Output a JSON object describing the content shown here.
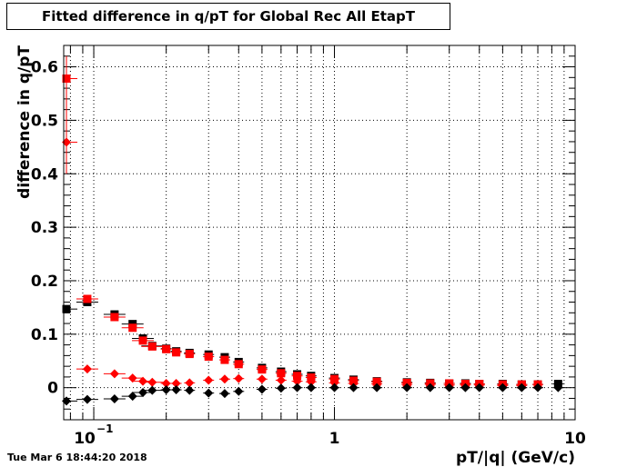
{
  "chart_data": {
    "type": "scatter",
    "title": "Fitted difference in q/pT for Global Rec All EtapT",
    "xlabel": "pT/|q| (GeV/c)",
    "ylabel": "difference in q/pT",
    "xscale": "log",
    "xlim": [
      0.075,
      10
    ],
    "ylim": [
      -0.06,
      0.64
    ],
    "grid": true,
    "x_ticks": [
      {
        "value": 0.1,
        "label": "10",
        "sup": "−1"
      },
      {
        "value": 1,
        "label": "1",
        "sup": ""
      },
      {
        "value": 10,
        "label": "10",
        "sup": ""
      }
    ],
    "y_ticks": [
      {
        "value": 0,
        "label": "0"
      },
      {
        "value": 0.1,
        "label": "0.1"
      },
      {
        "value": 0.2,
        "label": "0.2"
      },
      {
        "value": 0.3,
        "label": "0.3"
      },
      {
        "value": 0.4,
        "label": "0.4"
      },
      {
        "value": 0.5,
        "label": "0.5"
      },
      {
        "value": 0.6,
        "label": "0.6"
      }
    ],
    "series": [
      {
        "marker": "square",
        "color": "#000000",
        "x": [
          0.077,
          0.094,
          0.122,
          0.145,
          0.16,
          0.175,
          0.2,
          0.22,
          0.25,
          0.3,
          0.35,
          0.4,
          0.5,
          0.6,
          0.7,
          0.8,
          1.0,
          1.2,
          1.5,
          2.0,
          2.5,
          3.0,
          3.5,
          4.0,
          5.0,
          6.0,
          7.0,
          8.5
        ],
        "y": [
          0.147,
          0.16,
          0.137,
          0.119,
          0.092,
          0.078,
          0.073,
          0.068,
          0.065,
          0.062,
          0.057,
          0.048,
          0.037,
          0.03,
          0.025,
          0.022,
          0.018,
          0.015,
          0.012,
          0.01,
          0.009,
          0.008,
          0.008,
          0.007,
          0.007,
          0.006,
          0.006,
          0.007
        ]
      },
      {
        "marker": "square",
        "color": "#ff0000",
        "x": [
          0.077,
          0.094,
          0.122,
          0.145,
          0.16,
          0.175,
          0.2,
          0.22,
          0.25,
          0.3,
          0.35,
          0.4,
          0.5,
          0.6,
          0.7,
          0.8,
          1.0,
          1.2,
          1.5,
          2.0,
          2.5,
          3.0,
          3.5,
          4.0,
          5.0,
          6.0,
          7.0
        ],
        "y": [
          0.578,
          0.166,
          0.132,
          0.112,
          0.088,
          0.077,
          0.072,
          0.066,
          0.063,
          0.058,
          0.052,
          0.044,
          0.034,
          0.027,
          0.022,
          0.019,
          0.016,
          0.013,
          0.011,
          0.009,
          0.008,
          0.008,
          0.007,
          0.007,
          0.006,
          0.006,
          0.006
        ]
      },
      {
        "marker": "diamond",
        "color": "#ff0000",
        "x": [
          0.077,
          0.094,
          0.122,
          0.145,
          0.16,
          0.175,
          0.2,
          0.22,
          0.25,
          0.3,
          0.35,
          0.4,
          0.5,
          0.6,
          0.7,
          0.8,
          1.0,
          1.2,
          1.5,
          2.0,
          2.5,
          3.0,
          3.5,
          4.0,
          5.0,
          6.0
        ],
        "y": [
          0.459,
          0.035,
          0.026,
          0.018,
          0.012,
          0.01,
          0.008,
          0.008,
          0.009,
          0.014,
          0.016,
          0.017,
          0.016,
          0.014,
          0.012,
          0.011,
          0.009,
          0.008,
          0.007,
          0.006,
          0.006,
          0.005,
          0.005,
          0.005,
          0.004,
          0.004
        ]
      },
      {
        "marker": "diamond",
        "color": "#000000",
        "x": [
          0.077,
          0.094,
          0.122,
          0.145,
          0.16,
          0.175,
          0.2,
          0.22,
          0.25,
          0.3,
          0.35,
          0.4,
          0.5,
          0.6,
          0.7,
          0.8,
          1.0,
          1.2,
          1.5,
          2.0,
          2.5,
          3.0,
          3.5,
          4.0,
          5.0,
          6.0,
          7.0,
          8.5
        ],
        "y": [
          -0.025,
          -0.022,
          -0.021,
          -0.016,
          -0.009,
          -0.005,
          -0.004,
          -0.004,
          -0.005,
          -0.01,
          -0.011,
          -0.007,
          -0.003,
          -0.001,
          0.0,
          0.0,
          0.0,
          0.0,
          0.0,
          0.0,
          0.0,
          0.0,
          0.0,
          0.0,
          0.0,
          0.0,
          0.0,
          0.0
        ]
      }
    ]
  },
  "footer": {
    "timestamp": "Tue Mar  6 18:44:20 2018"
  }
}
